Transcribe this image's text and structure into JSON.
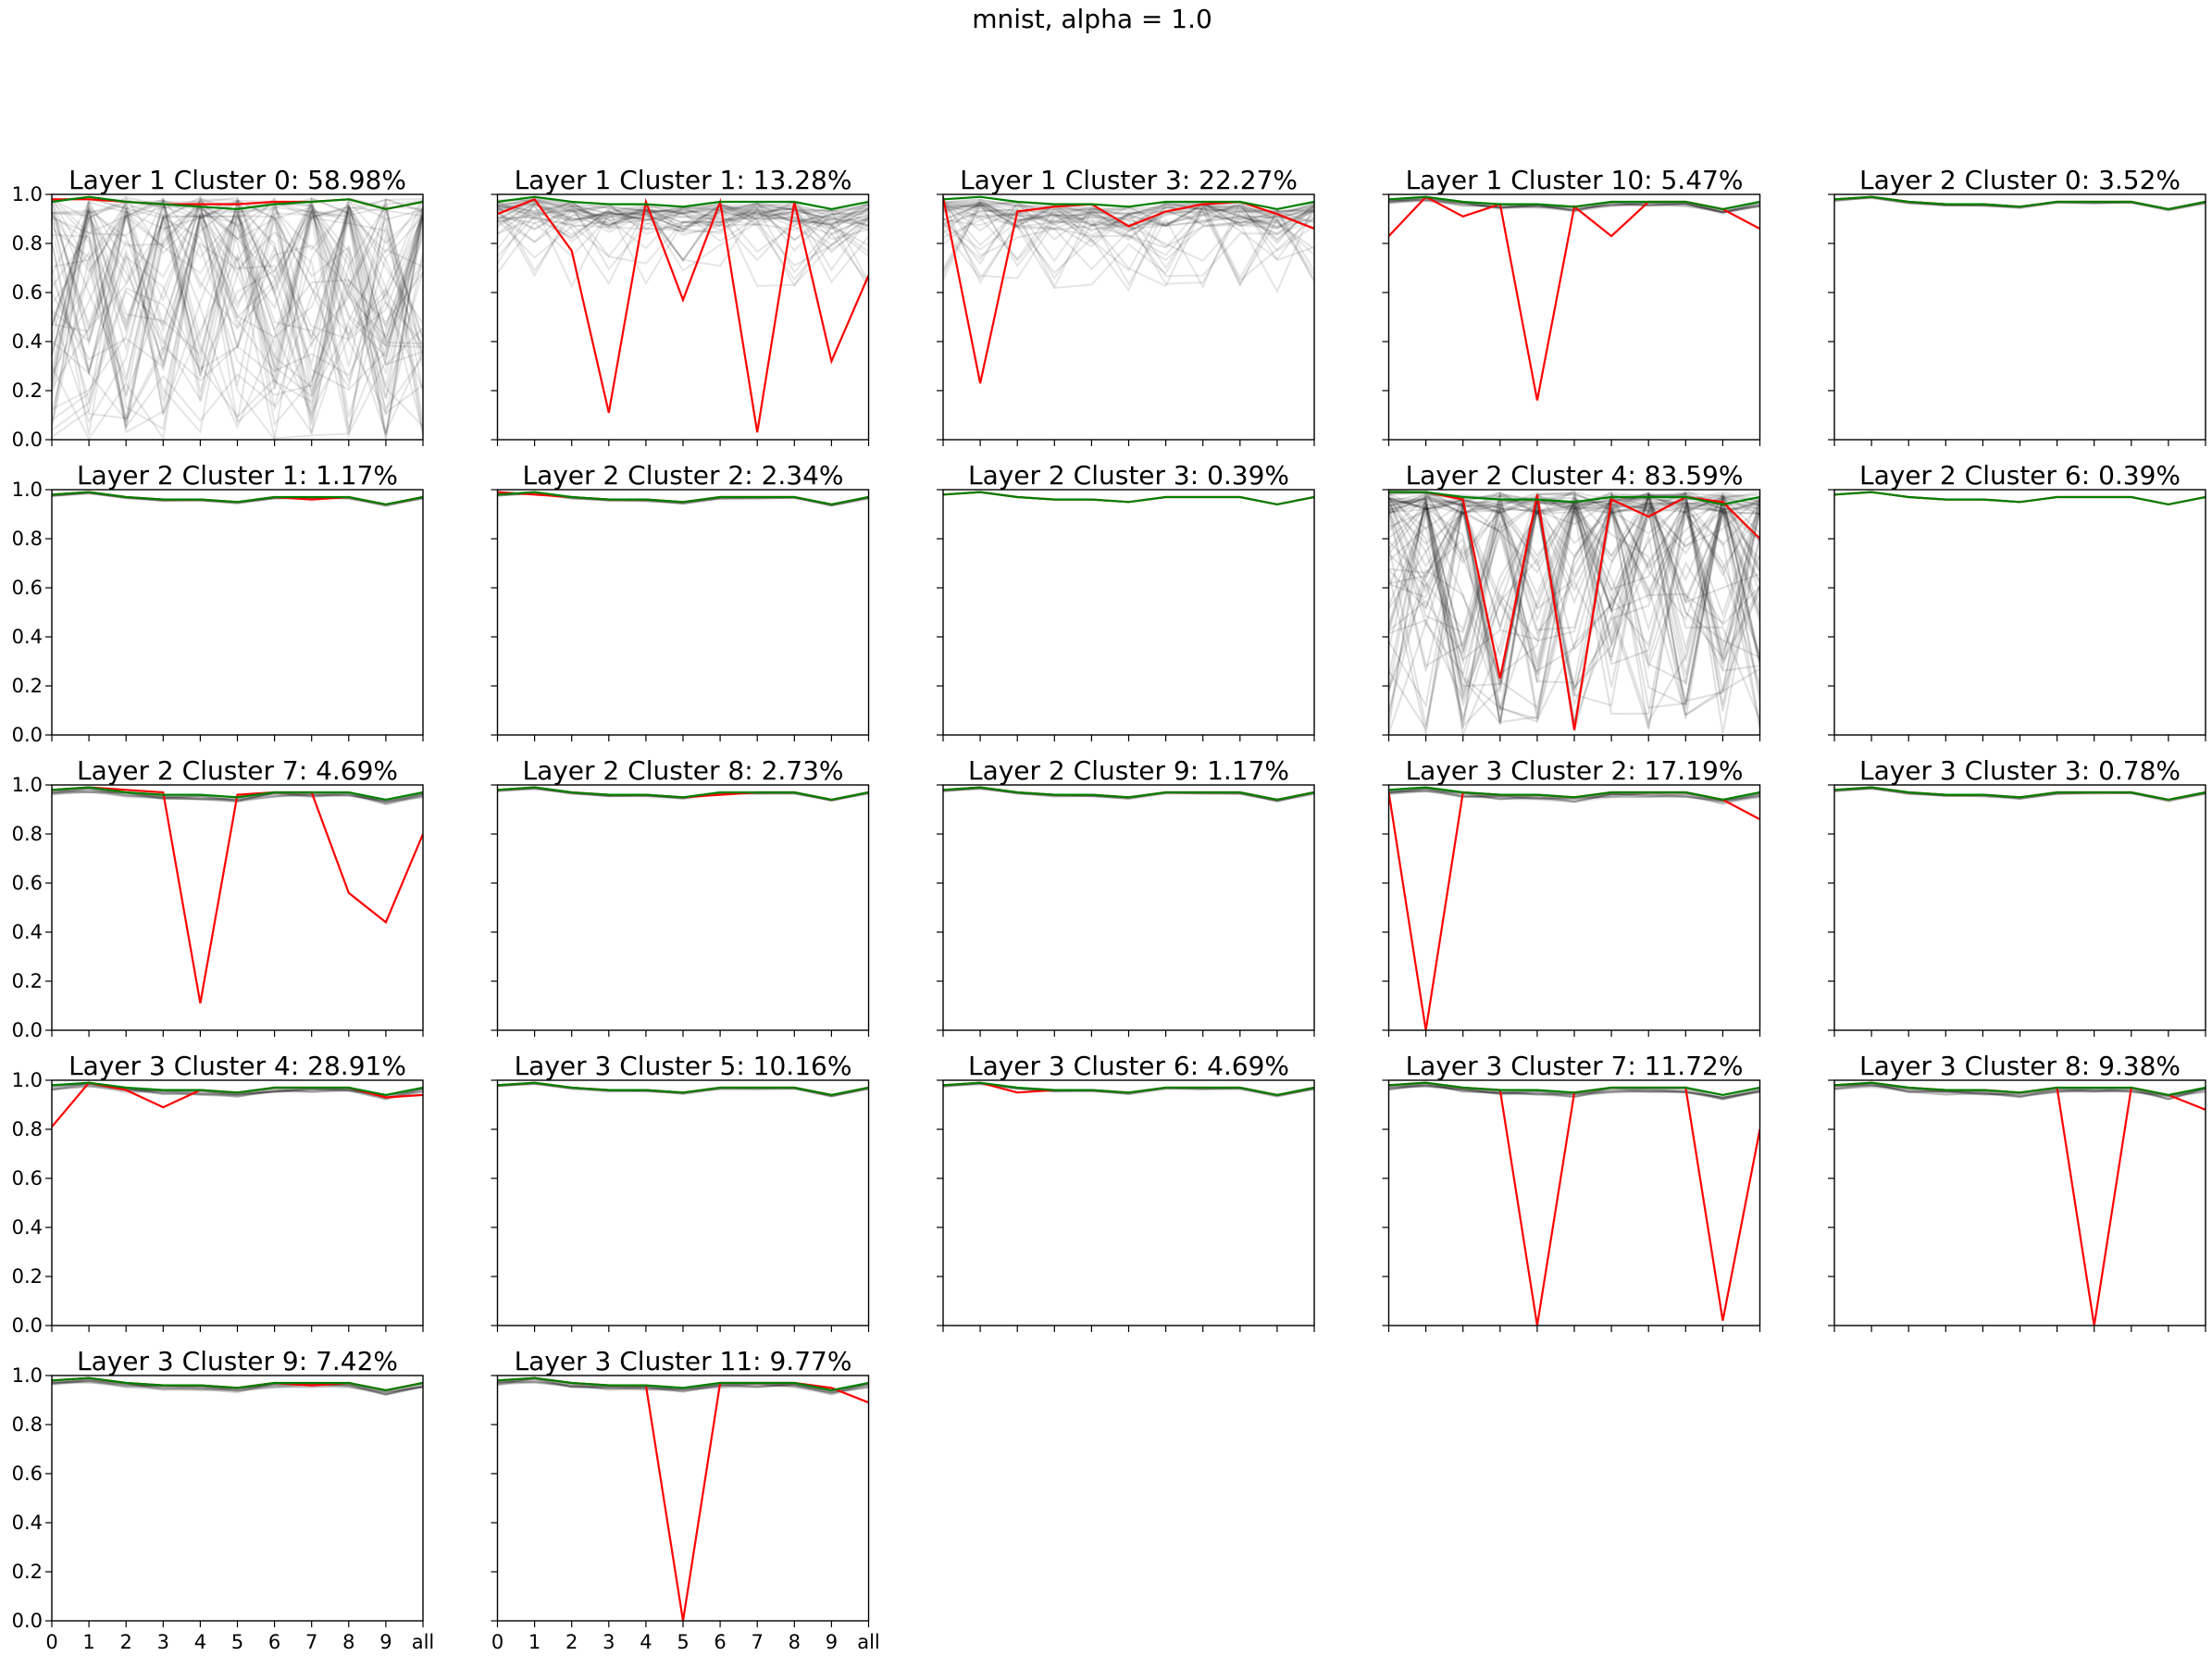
{
  "figure": {
    "suptitle": "mnist, alpha = 1.0",
    "x_tick_labels": [
      "0",
      "1",
      "2",
      "3",
      "4",
      "5",
      "6",
      "7",
      "8",
      "9",
      "all"
    ],
    "y_tick_labels": [
      "0.0",
      "0.2",
      "0.4",
      "0.6",
      "0.8",
      "1.0"
    ],
    "colors": {
      "background_lines": "#000000",
      "highlight": "#ff0000",
      "reference": "#008000"
    }
  },
  "chart_data": [
    {
      "type": "line",
      "title": "Layer 1 Cluster 0: 58.98%",
      "ylim": [
        0,
        1
      ],
      "noise": "high",
      "red": [
        0.98,
        0.98,
        0.97,
        0.96,
        0.96,
        0.96,
        0.97,
        0.97,
        0.98,
        0.94,
        0.97
      ],
      "green": [
        0.97,
        0.99,
        0.97,
        0.96,
        0.95,
        0.94,
        0.96,
        0.97,
        0.98,
        0.94,
        0.97
      ]
    },
    {
      "type": "line",
      "title": "Layer 1 Cluster 1: 13.28%",
      "ylim": [
        0,
        1
      ],
      "noise": "medium",
      "red": [
        0.92,
        0.98,
        0.77,
        0.11,
        0.97,
        0.57,
        0.97,
        0.03,
        0.97,
        0.32,
        0.67
      ],
      "green": [
        0.97,
        0.99,
        0.97,
        0.96,
        0.96,
        0.95,
        0.97,
        0.97,
        0.97,
        0.94,
        0.97
      ]
    },
    {
      "type": "line",
      "title": "Layer 1 Cluster 3: 22.27%",
      "ylim": [
        0,
        1
      ],
      "noise": "medium",
      "red": [
        0.99,
        0.23,
        0.93,
        0.95,
        0.96,
        0.87,
        0.93,
        0.96,
        0.97,
        0.92,
        0.86
      ],
      "green": [
        0.98,
        0.99,
        0.97,
        0.96,
        0.96,
        0.95,
        0.97,
        0.97,
        0.97,
        0.94,
        0.97
      ]
    },
    {
      "type": "line",
      "title": "Layer 1 Cluster 10: 5.47%",
      "ylim": [
        0,
        1
      ],
      "noise": "low",
      "red": [
        0.83,
        0.99,
        0.91,
        0.96,
        0.16,
        0.95,
        0.83,
        0.97,
        0.97,
        0.94,
        0.86
      ],
      "green": [
        0.98,
        0.99,
        0.97,
        0.96,
        0.96,
        0.95,
        0.97,
        0.97,
        0.97,
        0.94,
        0.97
      ]
    },
    {
      "type": "line",
      "title": "Layer 2 Cluster 0: 3.52%",
      "ylim": [
        0,
        1
      ],
      "noise": "tiny",
      "red": [
        0.98,
        0.99,
        0.97,
        0.96,
        0.96,
        0.95,
        0.97,
        0.97,
        0.97,
        0.94,
        0.97
      ],
      "green": [
        0.98,
        0.99,
        0.97,
        0.96,
        0.96,
        0.95,
        0.97,
        0.97,
        0.97,
        0.94,
        0.97
      ]
    },
    {
      "type": "line",
      "title": "Layer 2 Cluster 1: 1.17%",
      "ylim": [
        0,
        1
      ],
      "noise": "tiny",
      "red": [
        0.98,
        0.99,
        0.97,
        0.96,
        0.96,
        0.95,
        0.97,
        0.96,
        0.97,
        0.94,
        0.97
      ],
      "green": [
        0.98,
        0.99,
        0.97,
        0.96,
        0.96,
        0.95,
        0.97,
        0.97,
        0.97,
        0.94,
        0.97
      ]
    },
    {
      "type": "line",
      "title": "Layer 2 Cluster 2: 2.34%",
      "ylim": [
        0,
        1
      ],
      "noise": "tiny",
      "red": [
        0.99,
        0.98,
        0.97,
        0.96,
        0.96,
        0.95,
        0.97,
        0.97,
        0.97,
        0.94,
        0.97
      ],
      "green": [
        0.98,
        0.99,
        0.97,
        0.96,
        0.96,
        0.95,
        0.97,
        0.97,
        0.97,
        0.94,
        0.97
      ]
    },
    {
      "type": "line",
      "title": "Layer 2 Cluster 3: 0.39%",
      "ylim": [
        0,
        1
      ],
      "noise": "none",
      "red": [
        0.98,
        0.99,
        0.97,
        0.96,
        0.96,
        0.95,
        0.97,
        0.97,
        0.97,
        0.94,
        0.97
      ],
      "green": [
        0.98,
        0.99,
        0.97,
        0.96,
        0.96,
        0.95,
        0.97,
        0.97,
        0.97,
        0.94,
        0.97
      ]
    },
    {
      "type": "line",
      "title": "Layer 2 Cluster 4: 83.59%",
      "ylim": [
        0,
        1
      ],
      "noise": "extreme",
      "red": [
        0.99,
        0.99,
        0.96,
        0.23,
        0.98,
        0.02,
        0.96,
        0.89,
        0.97,
        0.95,
        0.8
      ],
      "green": [
        0.99,
        0.99,
        0.97,
        0.96,
        0.96,
        0.95,
        0.97,
        0.97,
        0.97,
        0.94,
        0.97
      ]
    },
    {
      "type": "line",
      "title": "Layer 2 Cluster 6: 0.39%",
      "ylim": [
        0,
        1
      ],
      "noise": "none",
      "red": [
        0.98,
        0.99,
        0.97,
        0.96,
        0.96,
        0.95,
        0.97,
        0.97,
        0.97,
        0.94,
        0.97
      ],
      "green": [
        0.98,
        0.99,
        0.97,
        0.96,
        0.96,
        0.95,
        0.97,
        0.97,
        0.97,
        0.94,
        0.97
      ]
    },
    {
      "type": "line",
      "title": "Layer 2 Cluster 7: 4.69%",
      "ylim": [
        0,
        1
      ],
      "noise": "low",
      "red": [
        0.98,
        0.99,
        0.98,
        0.97,
        0.11,
        0.96,
        0.97,
        0.97,
        0.56,
        0.44,
        0.8
      ],
      "green": [
        0.98,
        0.99,
        0.97,
        0.96,
        0.96,
        0.95,
        0.97,
        0.97,
        0.97,
        0.94,
        0.97
      ]
    },
    {
      "type": "line",
      "title": "Layer 2 Cluster 8: 2.73%",
      "ylim": [
        0,
        1
      ],
      "noise": "tiny",
      "red": [
        0.98,
        0.99,
        0.97,
        0.96,
        0.96,
        0.95,
        0.96,
        0.97,
        0.97,
        0.94,
        0.97
      ],
      "green": [
        0.98,
        0.99,
        0.97,
        0.96,
        0.96,
        0.95,
        0.97,
        0.97,
        0.97,
        0.94,
        0.97
      ]
    },
    {
      "type": "line",
      "title": "Layer 2 Cluster 9: 1.17%",
      "ylim": [
        0,
        1
      ],
      "noise": "tiny",
      "red": [
        0.98,
        0.99,
        0.97,
        0.96,
        0.96,
        0.95,
        0.97,
        0.97,
        0.97,
        0.94,
        0.97
      ],
      "green": [
        0.98,
        0.99,
        0.97,
        0.96,
        0.96,
        0.95,
        0.97,
        0.97,
        0.97,
        0.94,
        0.97
      ]
    },
    {
      "type": "line",
      "title": "Layer 3 Cluster 2: 17.19%",
      "ylim": [
        0,
        1
      ],
      "noise": "low",
      "red": [
        0.97,
        0.0,
        0.97,
        0.96,
        0.96,
        0.95,
        0.97,
        0.97,
        0.97,
        0.94,
        0.86
      ],
      "green": [
        0.98,
        0.99,
        0.97,
        0.96,
        0.96,
        0.95,
        0.97,
        0.97,
        0.97,
        0.94,
        0.97
      ]
    },
    {
      "type": "line",
      "title": "Layer 3 Cluster 3: 0.78%",
      "ylim": [
        0,
        1
      ],
      "noise": "tiny",
      "red": [
        0.98,
        0.99,
        0.97,
        0.96,
        0.96,
        0.95,
        0.97,
        0.97,
        0.97,
        0.94,
        0.97
      ],
      "green": [
        0.98,
        0.99,
        0.97,
        0.96,
        0.96,
        0.95,
        0.97,
        0.97,
        0.97,
        0.94,
        0.97
      ]
    },
    {
      "type": "line",
      "title": "Layer 3 Cluster 4: 28.91%",
      "ylim": [
        0,
        1
      ],
      "noise": "low",
      "red": [
        0.81,
        0.99,
        0.96,
        0.89,
        0.96,
        0.95,
        0.97,
        0.97,
        0.97,
        0.93,
        0.94
      ],
      "green": [
        0.98,
        0.99,
        0.97,
        0.96,
        0.96,
        0.95,
        0.97,
        0.97,
        0.97,
        0.94,
        0.97
      ]
    },
    {
      "type": "line",
      "title": "Layer 3 Cluster 5: 10.16%",
      "ylim": [
        0,
        1
      ],
      "noise": "tiny",
      "red": [
        0.98,
        0.99,
        0.97,
        0.96,
        0.96,
        0.95,
        0.97,
        0.97,
        0.97,
        0.94,
        0.97
      ],
      "green": [
        0.98,
        0.99,
        0.97,
        0.96,
        0.96,
        0.95,
        0.97,
        0.97,
        0.97,
        0.94,
        0.97
      ]
    },
    {
      "type": "line",
      "title": "Layer 3 Cluster 6: 4.69%",
      "ylim": [
        0,
        1
      ],
      "noise": "tiny",
      "red": [
        0.98,
        0.99,
        0.95,
        0.96,
        0.96,
        0.95,
        0.97,
        0.97,
        0.97,
        0.94,
        0.97
      ],
      "green": [
        0.98,
        0.99,
        0.97,
        0.96,
        0.96,
        0.95,
        0.97,
        0.97,
        0.97,
        0.94,
        0.97
      ]
    },
    {
      "type": "line",
      "title": "Layer 3 Cluster 7: 11.72%",
      "ylim": [
        0,
        1
      ],
      "noise": "low",
      "red": [
        0.98,
        0.99,
        0.97,
        0.96,
        0.0,
        0.95,
        0.97,
        0.97,
        0.97,
        0.02,
        0.8
      ],
      "green": [
        0.98,
        0.99,
        0.97,
        0.96,
        0.96,
        0.95,
        0.97,
        0.97,
        0.97,
        0.94,
        0.97
      ]
    },
    {
      "type": "line",
      "title": "Layer 3 Cluster 8: 9.38%",
      "ylim": [
        0,
        1
      ],
      "noise": "low",
      "red": [
        0.98,
        0.99,
        0.97,
        0.96,
        0.96,
        0.95,
        0.97,
        0.0,
        0.97,
        0.94,
        0.88
      ],
      "green": [
        0.98,
        0.99,
        0.97,
        0.96,
        0.96,
        0.95,
        0.97,
        0.97,
        0.97,
        0.94,
        0.97
      ]
    },
    {
      "type": "line",
      "title": "Layer 3 Cluster 9: 7.42%",
      "ylim": [
        0,
        1
      ],
      "noise": "low",
      "red": [
        0.98,
        0.99,
        0.97,
        0.96,
        0.96,
        0.95,
        0.97,
        0.96,
        0.97,
        0.94,
        0.97
      ],
      "green": [
        0.98,
        0.99,
        0.97,
        0.96,
        0.96,
        0.95,
        0.97,
        0.97,
        0.97,
        0.94,
        0.97
      ]
    },
    {
      "type": "line",
      "title": "Layer 3 Cluster 11: 9.77%",
      "ylim": [
        0,
        1
      ],
      "noise": "low",
      "red": [
        0.98,
        0.99,
        0.97,
        0.96,
        0.96,
        0.0,
        0.97,
        0.97,
        0.97,
        0.95,
        0.89
      ],
      "green": [
        0.98,
        0.99,
        0.97,
        0.96,
        0.96,
        0.95,
        0.97,
        0.97,
        0.97,
        0.94,
        0.97
      ]
    }
  ]
}
